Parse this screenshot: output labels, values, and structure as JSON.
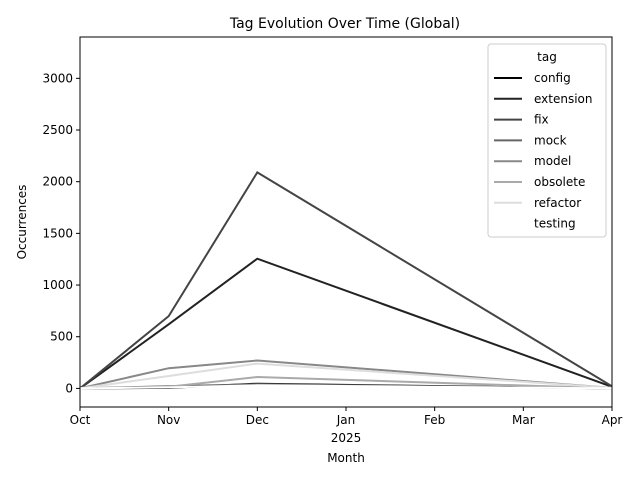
{
  "chart_data": {
    "type": "line",
    "title": "Tag Evolution Over Time (Global)",
    "xlabel": "Month",
    "ylabel": "Occurrences",
    "x_ticks": [
      "Oct",
      "Nov",
      "Dec",
      "Jan",
      "Feb",
      "Mar",
      "Apr"
    ],
    "x_year_label": "2025",
    "x": [
      "2024-10",
      "2024-11",
      "2024-12",
      "2025-04"
    ],
    "ylim": [
      -180,
      3400
    ],
    "y_ticks": [
      0,
      500,
      1000,
      1500,
      2000,
      2500,
      3000
    ],
    "grid": false,
    "legend_title": "tag",
    "legend_position": "top-right",
    "series": [
      {
        "name": "config",
        "color": "#000000",
        "values": [
          0,
          5,
          45,
          0
        ]
      },
      {
        "name": "extension",
        "color": "#222222",
        "values": [
          0,
          620,
          1255,
          15
        ]
      },
      {
        "name": "fix",
        "color": "#444444",
        "values": [
          0,
          700,
          2090,
          20
        ]
      },
      {
        "name": "mock",
        "color": "#666666",
        "values": [
          0,
          20,
          40,
          0
        ]
      },
      {
        "name": "model",
        "color": "#888888",
        "values": [
          0,
          195,
          270,
          5
        ]
      },
      {
        "name": "obsolete",
        "color": "#aaaaaa",
        "values": [
          0,
          15,
          110,
          0
        ]
      },
      {
        "name": "refactor",
        "color": "#dddddd",
        "values": [
          0,
          120,
          240,
          5
        ]
      },
      {
        "name": "testing",
        "color": "#ffffff",
        "values": [
          0,
          10,
          30,
          0
        ]
      }
    ]
  }
}
